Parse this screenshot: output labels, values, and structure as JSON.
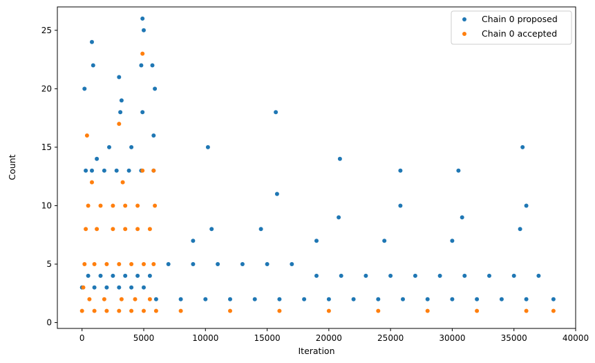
{
  "chart_data": {
    "type": "scatter",
    "title": "",
    "xlabel": "Iteration",
    "ylabel": "Count",
    "xlim": [
      -2000,
      40000
    ],
    "ylim": [
      -0.5,
      27
    ],
    "xticks": [
      0,
      5000,
      10000,
      15000,
      20000,
      25000,
      30000,
      35000,
      40000
    ],
    "yticks": [
      0,
      5,
      10,
      15,
      20,
      25
    ],
    "grid": false,
    "legend_position": "top-right",
    "series": [
      {
        "name": "Chain 0 proposed",
        "color": "#1f77b4",
        "x": [
          0,
          1000,
          2000,
          3000,
          4000,
          5000,
          6000,
          8000,
          10000,
          12000,
          14000,
          16000,
          18000,
          20000,
          22000,
          24000,
          26000,
          28000,
          30000,
          32000,
          34000,
          36000,
          38200,
          500,
          1500,
          2500,
          3500,
          4500,
          5500,
          7000,
          9000,
          11000,
          13000,
          15000,
          17000,
          19000,
          21000,
          23000,
          25000,
          27000,
          29000,
          31000,
          33000,
          35000,
          37000,
          300,
          800,
          1800,
          2800,
          3800,
          4800,
          5800,
          9000,
          10500,
          14500,
          15800,
          19000,
          20800,
          24500,
          25800,
          30000,
          30800,
          35500,
          36000,
          200,
          900,
          3000,
          3100,
          4800,
          4900,
          5700,
          5900,
          10200,
          15700,
          20900,
          25800,
          30500,
          35700,
          4900,
          800,
          5000,
          3200,
          4000,
          5800,
          1200,
          2200
        ],
        "y": [
          3,
          3,
          3,
          3,
          3,
          3,
          2,
          2,
          2,
          2,
          2,
          2,
          2,
          2,
          2,
          2,
          2,
          2,
          2,
          2,
          2,
          2,
          2,
          4,
          4,
          4,
          4,
          4,
          4,
          5,
          5,
          5,
          5,
          5,
          5,
          4,
          4,
          4,
          4,
          4,
          4,
          4,
          4,
          4,
          4,
          13,
          13,
          13,
          13,
          13,
          13,
          13,
          7,
          8,
          8,
          11,
          7,
          9,
          7,
          10,
          7,
          9,
          8,
          10,
          20,
          22,
          21,
          18,
          22,
          18,
          22,
          20,
          15,
          18,
          14,
          13,
          13,
          15,
          26,
          24,
          25,
          19,
          15,
          16,
          14,
          15
        ]
      },
      {
        "name": "Chain 0 accepted",
        "color": "#ff7f0e",
        "x": [
          0,
          1000,
          2000,
          3000,
          4000,
          5000,
          6000,
          8000,
          12000,
          16000,
          20000,
          24000,
          28000,
          32000,
          36000,
          38200,
          200,
          1000,
          2000,
          3000,
          4000,
          5000,
          5800,
          300,
          1200,
          2500,
          3500,
          4500,
          5500,
          500,
          1500,
          2500,
          3500,
          4500,
          5900,
          800,
          3300,
          4900,
          5800,
          4900,
          100,
          600,
          1800,
          3200,
          4300,
          5500,
          400,
          3000
        ],
        "y": [
          1,
          1,
          1,
          1,
          1,
          1,
          1,
          1,
          1,
          1,
          1,
          1,
          1,
          1,
          1,
          1,
          5,
          5,
          5,
          5,
          5,
          5,
          5,
          8,
          8,
          8,
          8,
          8,
          8,
          10,
          10,
          10,
          10,
          10,
          10,
          12,
          12,
          13,
          13,
          23,
          3,
          2,
          2,
          2,
          2,
          2,
          16,
          17
        ]
      }
    ]
  }
}
